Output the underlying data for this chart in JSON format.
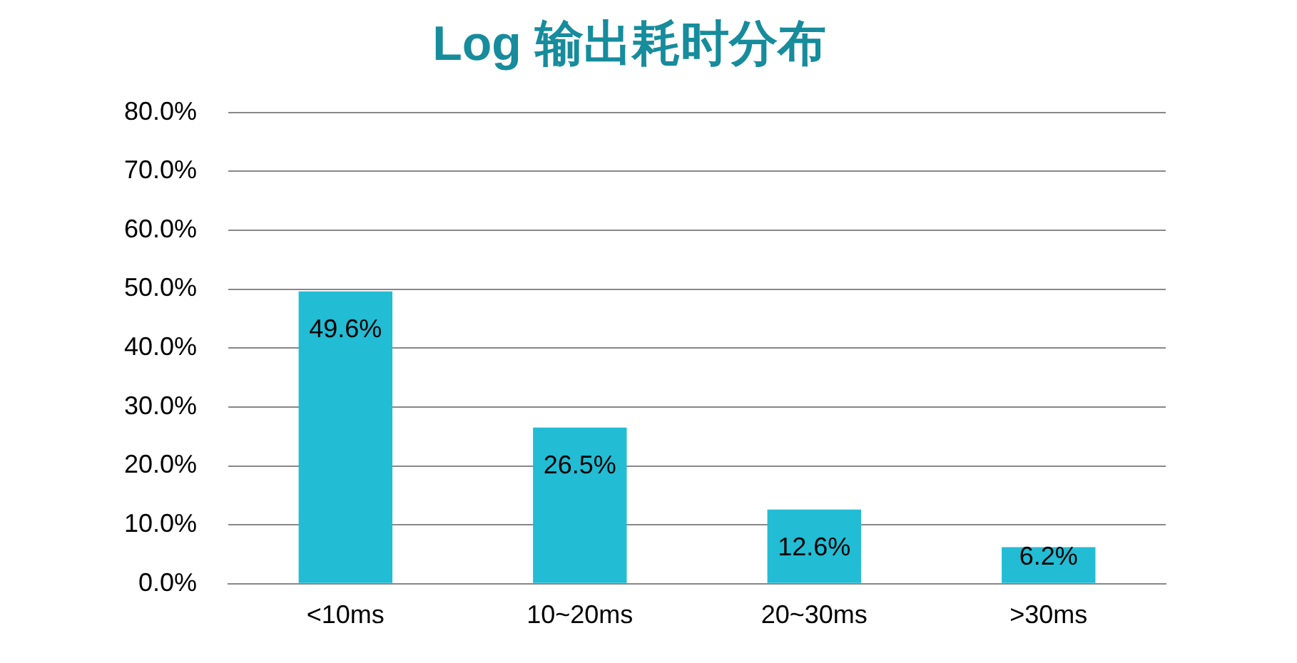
{
  "chart_data": {
    "type": "bar",
    "title": "Log 输出耗时分布",
    "categories": [
      "<10ms",
      "10~20ms",
      "20~30ms",
      ">30ms"
    ],
    "values": [
      49.6,
      26.5,
      12.6,
      6.2
    ],
    "value_labels": [
      "49.6%",
      "26.5%",
      "12.6%",
      "6.2%"
    ],
    "color": "#22bcd4",
    "ylim": [
      0,
      80
    ],
    "yticks": [
      {
        "value": 0,
        "label": "0.0%"
      },
      {
        "value": 10,
        "label": "10.0%"
      },
      {
        "value": 20,
        "label": "20.0%"
      },
      {
        "value": 30,
        "label": "30.0%"
      },
      {
        "value": 40,
        "label": "40.0%"
      },
      {
        "value": 50,
        "label": "50.0%"
      },
      {
        "value": 60,
        "label": "60.0%"
      },
      {
        "value": 70,
        "label": "70.0%"
      },
      {
        "value": 80,
        "label": "80.0%"
      }
    ],
    "grid": "y"
  }
}
